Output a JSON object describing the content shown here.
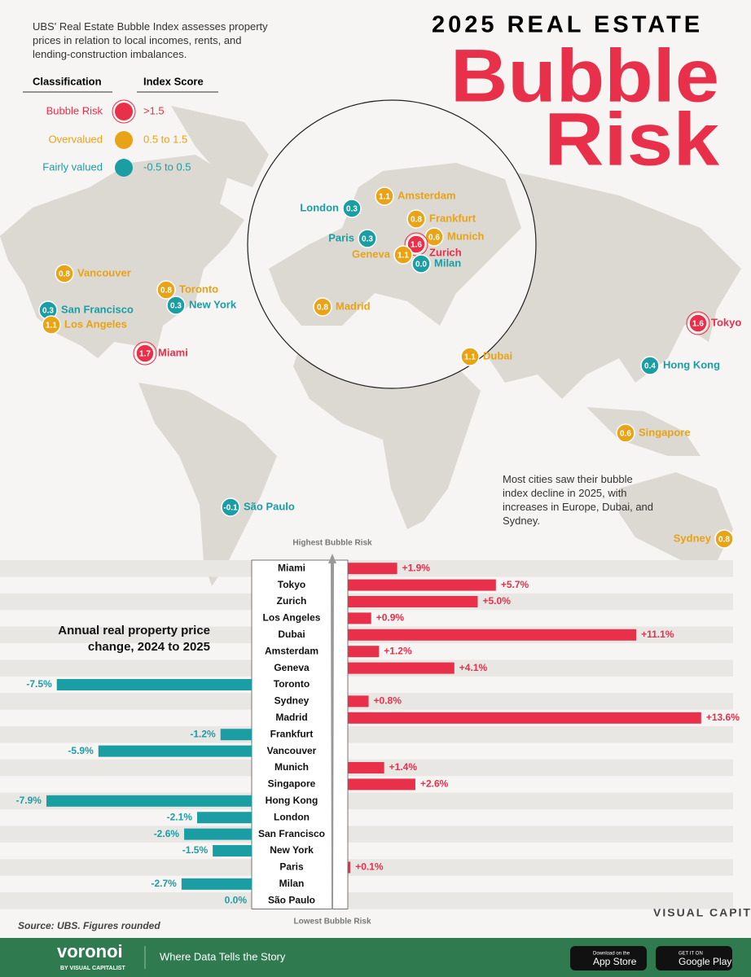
{
  "header": {
    "title_top": "2025 REAL ESTATE",
    "title_big_1": "Bubble",
    "title_big_2": "Risk",
    "intro": "UBS' Real Estate Bubble Index assesses property prices in relation to local incomes, rents, and lending-construction imbalances."
  },
  "legend": {
    "heading_class": "Classification",
    "heading_score": "Index Score",
    "items": [
      {
        "label": "Bubble Risk",
        "range": ">1.5",
        "color": "#e8304a"
      },
      {
        "label": "Overvalued",
        "range": "0.5 to 1.5",
        "color": "#e8a317"
      },
      {
        "label": "Fairly valued",
        "range": "-0.5 to 0.5",
        "color": "#1a9ea4"
      }
    ]
  },
  "map": {
    "note": "Most cities saw their bubble index decline in 2025, with increases in Europe, Dubai, and Sydney.",
    "cities": [
      {
        "name": "London",
        "score": 0.3,
        "color": "#1a9ea4"
      },
      {
        "name": "Amsterdam",
        "score": 1.1,
        "color": "#e8a317"
      },
      {
        "name": "Frankfurt",
        "score": 0.8,
        "color": "#e8a317"
      },
      {
        "name": "Paris",
        "score": 0.3,
        "color": "#1a9ea4"
      },
      {
        "name": "Munich",
        "score": 0.6,
        "color": "#e8a317"
      },
      {
        "name": "Zurich",
        "score": 1.6,
        "color": "#e8304a"
      },
      {
        "name": "Geneva",
        "score": 1.1,
        "color": "#e8a317"
      },
      {
        "name": "Milan",
        "score": 0,
        "score_label": "0.0",
        "color": "#1a9ea4"
      },
      {
        "name": "Madrid",
        "score": 0.8,
        "color": "#e8a317"
      },
      {
        "name": "Vancouver",
        "score": 0.8,
        "color": "#e8a317"
      },
      {
        "name": "Toronto",
        "score": 0.8,
        "color": "#e8a317"
      },
      {
        "name": "New York",
        "score": 0.3,
        "color": "#1a9ea4"
      },
      {
        "name": "San Francisco",
        "score": 0.3,
        "color": "#1a9ea4"
      },
      {
        "name": "Los Angeles",
        "score": 1.1,
        "color": "#e8a317"
      },
      {
        "name": "Miami",
        "score": 1.7,
        "color": "#e8304a"
      },
      {
        "name": "Tokyo",
        "score": 1.6,
        "color": "#e8304a"
      },
      {
        "name": "Dubai",
        "score": 1.1,
        "color": "#e8a317"
      },
      {
        "name": "Hong Kong",
        "score": 0.4,
        "color": "#1a9ea4"
      },
      {
        "name": "Singapore",
        "score": 0.6,
        "color": "#e8a317"
      },
      {
        "name": "São Paulo",
        "score": -0.1,
        "color": "#1a9ea4"
      },
      {
        "name": "Sydney",
        "score": 0.8,
        "color": "#e8a317"
      }
    ]
  },
  "chart_data": {
    "type": "bar",
    "orientation": "horizontal",
    "title": "Annual real property price change, 2024 to 2025",
    "top_label": "Highest Bubble Risk",
    "bottom_label": "Lowest Bubble Risk",
    "categories": [
      "Miami",
      "Tokyo",
      "Zurich",
      "Los Angeles",
      "Dubai",
      "Amsterdam",
      "Geneva",
      "Toronto",
      "Sydney",
      "Madrid",
      "Frankfurt",
      "Vancouver",
      "Munich",
      "Singapore",
      "Hong Kong",
      "London",
      "San Francisco",
      "New York",
      "Paris",
      "Milan",
      "São Paulo"
    ],
    "values": [
      1.9,
      5.7,
      5.0,
      0.9,
      11.1,
      1.2,
      4.1,
      -7.5,
      0.8,
      13.6,
      -1.2,
      -5.9,
      1.4,
      2.6,
      -7.9,
      -2.1,
      -2.6,
      -1.5,
      0.1,
      -2.7,
      0.0
    ],
    "value_labels": [
      "+1.9%",
      "+5.7%",
      "+5.0%",
      "+0.9%",
      "+11.1%",
      "+1.2%",
      "+4.1%",
      "-7.5%",
      "+0.8%",
      "+13.6%",
      "-1.2%",
      "-5.9%",
      "+1.4%",
      "+2.6%",
      "-7.9%",
      "-2.1%",
      "-2.6%",
      "-1.5%",
      "+0.1%",
      "-2.7%",
      "0.0%"
    ],
    "color_positive": "#e8304a",
    "color_negative": "#1a9ea4"
  },
  "footer": {
    "source": "Source: UBS. Figures rounded",
    "brand": "VISUAL CAPITALIST",
    "logo": "voronoi",
    "logo_sub": "BY VISUAL CAPITALIST",
    "tagline": "Where Data Tells the Story",
    "app_store_small": "Download on the",
    "app_store": "App Store",
    "play_small": "GET IT ON",
    "play": "Google Play"
  }
}
